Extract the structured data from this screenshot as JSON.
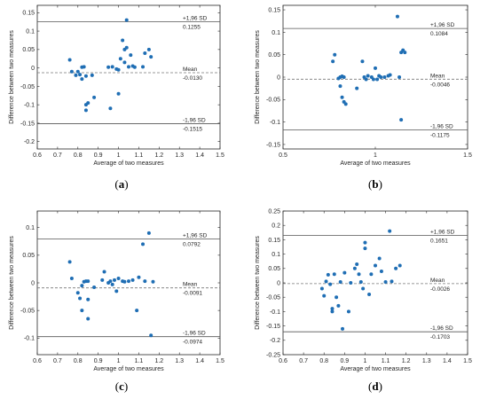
{
  "chart_data": [
    {
      "type": "scatter",
      "panel_label": "(a)",
      "xlabel": "Average of two measures",
      "ylabel": "Difference between two measures",
      "xlim": [
        0.6,
        1.5
      ],
      "ylim": [
        -0.22,
        0.17
      ],
      "xticks": [
        0.6,
        0.7,
        0.8,
        0.9,
        1,
        1.1,
        1.2,
        1.3,
        1.4,
        1.5
      ],
      "xtick_labels": [
        "0.6",
        "0.7",
        "0.8",
        "0.9",
        "1",
        "1.1",
        "1.2",
        "1.3",
        "1.4",
        "1.5"
      ],
      "yticks": [
        -0.2,
        -0.15,
        -0.1,
        -0.05,
        0,
        0.05,
        0.1,
        0.15
      ],
      "ytick_labels": [
        "-0.2",
        "-0.15",
        "-0.1",
        "-0.05",
        "0",
        "0.05",
        "0.1",
        "0.15"
      ],
      "lines": {
        "upper": 0.1255,
        "mean": -0.013,
        "lower": -0.1515
      },
      "annotations": {
        "upper_label": "+1,96 SD",
        "upper_value": "0.1255",
        "mean_label": "Mean",
        "mean_value": "-0.0130",
        "lower_label": "-1,96 SD",
        "lower_value": "-0.1515"
      },
      "points": [
        [
          0.76,
          0.022
        ],
        [
          0.77,
          -0.01
        ],
        [
          0.79,
          -0.02
        ],
        [
          0.8,
          -0.01
        ],
        [
          0.81,
          -0.018
        ],
        [
          0.82,
          -0.03
        ],
        [
          0.82,
          0.002
        ],
        [
          0.83,
          0.003
        ],
        [
          0.84,
          -0.022
        ],
        [
          0.84,
          -0.1
        ],
        [
          0.84,
          -0.115
        ],
        [
          0.85,
          -0.095
        ],
        [
          0.87,
          -0.02
        ],
        [
          0.88,
          -0.08
        ],
        [
          0.95,
          0.002
        ],
        [
          0.96,
          -0.11
        ],
        [
          0.97,
          0.003
        ],
        [
          0.99,
          -0.003
        ],
        [
          1.0,
          -0.07
        ],
        [
          1.0,
          -0.005
        ],
        [
          1.01,
          0.025
        ],
        [
          1.02,
          0.075
        ],
        [
          1.03,
          0.05
        ],
        [
          1.03,
          0.015
        ],
        [
          1.04,
          0.13
        ],
        [
          1.04,
          0.055
        ],
        [
          1.05,
          0.003
        ],
        [
          1.06,
          0.035
        ],
        [
          1.07,
          0.005
        ],
        [
          1.08,
          0.002
        ],
        [
          1.12,
          0.003
        ],
        [
          1.13,
          0.04
        ],
        [
          1.15,
          0.05
        ],
        [
          1.16,
          0.03
        ]
      ]
    },
    {
      "type": "scatter",
      "panel_label": "(b)",
      "xlabel": "Average of two measures",
      "ylabel": "Difference between two measures",
      "xlim": [
        0.5,
        1.5
      ],
      "ylim": [
        -0.16,
        0.16
      ],
      "xticks": [
        0.5,
        1,
        1.5
      ],
      "xtick_labels": [
        "0.5",
        "1",
        "1.5"
      ],
      "yticks": [
        -0.15,
        -0.1,
        -0.05,
        0,
        0.05,
        0.1,
        0.15
      ],
      "ytick_labels": [
        "-0.15",
        "-0.1",
        "-0.05",
        "0",
        "0.05",
        "0.1",
        "0.15"
      ],
      "lines": {
        "upper": 0.1084,
        "mean": -0.0046,
        "lower": -0.1175
      },
      "annotations": {
        "upper_label": "+1,96 SD",
        "upper_value": "0.1084",
        "mean_label": "Mean",
        "mean_value": "-0.0046",
        "lower_label": "-1,96 SD",
        "lower_value": "-0.1175"
      },
      "points": [
        [
          0.77,
          0.035
        ],
        [
          0.78,
          0.05
        ],
        [
          0.8,
          -0.003
        ],
        [
          0.81,
          0.0
        ],
        [
          0.81,
          -0.02
        ],
        [
          0.82,
          0.002
        ],
        [
          0.82,
          -0.045
        ],
        [
          0.83,
          -0.055
        ],
        [
          0.83,
          0.0
        ],
        [
          0.84,
          -0.06
        ],
        [
          0.9,
          -0.025
        ],
        [
          0.93,
          0.035
        ],
        [
          0.94,
          0.0
        ],
        [
          0.95,
          -0.005
        ],
        [
          0.96,
          0.003
        ],
        [
          0.98,
          0.0
        ],
        [
          0.99,
          -0.005
        ],
        [
          1.0,
          0.02
        ],
        [
          1.01,
          -0.005
        ],
        [
          1.02,
          0.003
        ],
        [
          1.03,
          0.0
        ],
        [
          1.05,
          0.0
        ],
        [
          1.07,
          0.003
        ],
        [
          1.08,
          0.005
        ],
        [
          1.12,
          0.135
        ],
        [
          1.13,
          0.0
        ],
        [
          1.14,
          0.055
        ],
        [
          1.15,
          0.06
        ],
        [
          1.16,
          0.055
        ],
        [
          1.14,
          -0.095
        ]
      ]
    },
    {
      "type": "scatter",
      "panel_label": "(c)",
      "xlabel": "Average of two measures",
      "ylabel": "Difference between two measures",
      "xlim": [
        0.6,
        1.5
      ],
      "ylim": [
        -0.13,
        0.13
      ],
      "xticks": [
        0.6,
        0.7,
        0.8,
        0.9,
        1,
        1.1,
        1.2,
        1.3,
        1.4,
        1.5
      ],
      "xtick_labels": [
        "0.6",
        "0.7",
        "0.8",
        "0.9",
        "1",
        "1.1",
        "1.2",
        "1.3",
        "1.4",
        "1.5"
      ],
      "yticks": [
        -0.1,
        -0.05,
        0,
        0.05,
        0.1
      ],
      "ytick_labels": [
        "-0.1",
        "-0.05",
        "0",
        "0.05",
        "0.1"
      ],
      "lines": {
        "upper": 0.0792,
        "mean": -0.0091,
        "lower": -0.0974
      },
      "annotations": {
        "upper_label": "+1,96 SD",
        "upper_value": "0.0792",
        "mean_label": "Mean",
        "mean_value": "-0.0091",
        "lower_label": "-1,96 SD",
        "lower_value": "-0.0974"
      },
      "points": [
        [
          0.76,
          0.038
        ],
        [
          0.77,
          0.008
        ],
        [
          0.8,
          -0.018
        ],
        [
          0.81,
          -0.028
        ],
        [
          0.82,
          -0.05
        ],
        [
          0.82,
          -0.005
        ],
        [
          0.83,
          0.002
        ],
        [
          0.84,
          0.003
        ],
        [
          0.85,
          -0.065
        ],
        [
          0.85,
          -0.03
        ],
        [
          0.85,
          0.003
        ],
        [
          0.88,
          -0.008
        ],
        [
          0.92,
          0.005
        ],
        [
          0.93,
          0.02
        ],
        [
          0.95,
          0.0
        ],
        [
          0.96,
          0.003
        ],
        [
          0.97,
          -0.003
        ],
        [
          0.98,
          0.005
        ],
        [
          0.99,
          -0.015
        ],
        [
          1.0,
          0.008
        ],
        [
          1.02,
          0.003
        ],
        [
          1.03,
          0.002
        ],
        [
          1.05,
          0.003
        ],
        [
          1.07,
          0.005
        ],
        [
          1.09,
          -0.05
        ],
        [
          1.1,
          0.01
        ],
        [
          1.12,
          0.07
        ],
        [
          1.13,
          0.003
        ],
        [
          1.15,
          0.09
        ],
        [
          1.17,
          0.002
        ],
        [
          1.16,
          -0.095
        ]
      ]
    },
    {
      "type": "scatter",
      "panel_label": "(d)",
      "xlabel": "Average of two measures",
      "ylabel": "Difference between two measures",
      "xlim": [
        0.6,
        1.5
      ],
      "ylim": [
        -0.25,
        0.25
      ],
      "xticks": [
        0.6,
        0.7,
        0.8,
        0.9,
        1,
        1.1,
        1.2,
        1.3,
        1.4,
        1.5
      ],
      "xtick_labels": [
        "0.6",
        "0.7",
        "0.8",
        "0.9",
        "1",
        "1.1",
        "1.2",
        "1.3",
        "1.4",
        "1.5"
      ],
      "yticks": [
        -0.25,
        -0.2,
        -0.15,
        -0.1,
        -0.05,
        0,
        0.05,
        0.1,
        0.15,
        0.2,
        0.25
      ],
      "ytick_labels": [
        "-0.25",
        "-0.2",
        "-0.15",
        "-0.1",
        "-0.05",
        "0",
        "0.05",
        "0.1",
        "0.15",
        "0.2",
        "0.25"
      ],
      "lines": {
        "upper": 0.1651,
        "mean": -0.0026,
        "lower": -0.1703
      },
      "annotations": {
        "upper_label": "+1,96 SD",
        "upper_value": "0.1651",
        "mean_label": "Mean",
        "mean_value": "-0.0026",
        "lower_label": "-1,96 SD",
        "lower_value": "-0.1703"
      },
      "points": [
        [
          0.79,
          -0.02
        ],
        [
          0.8,
          -0.045
        ],
        [
          0.81,
          0.005
        ],
        [
          0.82,
          0.028
        ],
        [
          0.83,
          -0.005
        ],
        [
          0.84,
          -0.09
        ],
        [
          0.84,
          -0.1
        ],
        [
          0.85,
          0.03
        ],
        [
          0.86,
          -0.05
        ],
        [
          0.87,
          -0.08
        ],
        [
          0.88,
          0.003
        ],
        [
          0.89,
          -0.16
        ],
        [
          0.9,
          0.035
        ],
        [
          0.92,
          -0.1
        ],
        [
          0.93,
          0.0
        ],
        [
          0.95,
          0.05
        ],
        [
          0.96,
          0.065
        ],
        [
          0.97,
          0.03
        ],
        [
          0.98,
          0.003
        ],
        [
          0.99,
          -0.02
        ],
        [
          1.0,
          0.14
        ],
        [
          1.0,
          0.12
        ],
        [
          1.02,
          -0.04
        ],
        [
          1.03,
          0.03
        ],
        [
          1.05,
          0.06
        ],
        [
          1.07,
          0.085
        ],
        [
          1.08,
          0.04
        ],
        [
          1.1,
          0.003
        ],
        [
          1.12,
          0.18
        ],
        [
          1.13,
          0.005
        ],
        [
          1.15,
          0.05
        ],
        [
          1.17,
          0.06
        ]
      ]
    }
  ]
}
